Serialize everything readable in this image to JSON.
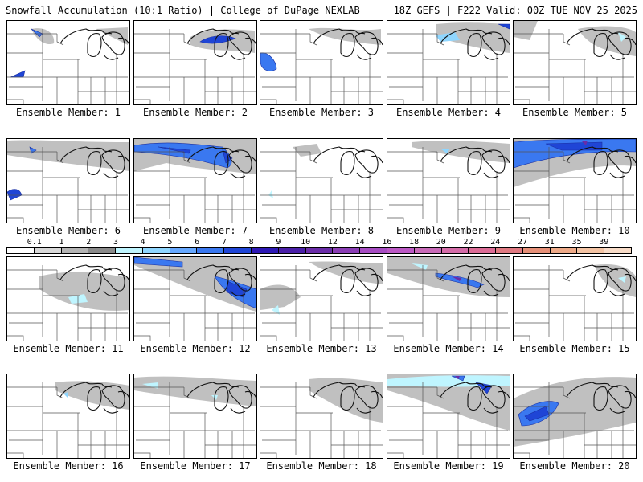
{
  "header": {
    "title": "Snowfall Accumulation (10:1 Ratio) | College of DuPage NEXLAB",
    "run_info": "18Z GEFS | F222 Valid: 00Z TUE NOV 25 2025"
  },
  "legend": {
    "labels": [
      "0.1",
      "1",
      "2",
      "3",
      "4",
      "5",
      "6",
      "7",
      "8",
      "9",
      "10",
      "12",
      "14",
      "16",
      "18",
      "20",
      "22",
      "24",
      "27",
      "31",
      "35",
      "39"
    ],
    "colors": [
      "#ffffff",
      "#d8d8d8",
      "#b4b4b4",
      "#8a8a8a",
      "#bff5ff",
      "#8fd6ff",
      "#66a8ff",
      "#3a78f0",
      "#1f45d6",
      "#2d18b5",
      "#4a1fa8",
      "#6a2ca8",
      "#8a3db5",
      "#a64cc2",
      "#bb58c4",
      "#c86ab8",
      "#d46ca8",
      "#dc6c96",
      "#e07a82",
      "#e69078",
      "#eeaa88",
      "#f4c4a4",
      "#f8dcc8"
    ]
  },
  "panels": [
    {
      "label": "Ensemble Member: 1"
    },
    {
      "label": "Ensemble Member: 2"
    },
    {
      "label": "Ensemble Member: 3"
    },
    {
      "label": "Ensemble Member: 4"
    },
    {
      "label": "Ensemble Member: 5"
    },
    {
      "label": "Ensemble Member: 6"
    },
    {
      "label": "Ensemble Member: 7"
    },
    {
      "label": "Ensemble Member: 8"
    },
    {
      "label": "Ensemble Member: 9"
    },
    {
      "label": "Ensemble Member: 10"
    },
    {
      "label": "Ensemble Member: 11"
    },
    {
      "label": "Ensemble Member: 12"
    },
    {
      "label": "Ensemble Member: 13"
    },
    {
      "label": "Ensemble Member: 14"
    },
    {
      "label": "Ensemble Member: 15"
    },
    {
      "label": "Ensemble Member: 16"
    },
    {
      "label": "Ensemble Member: 17"
    },
    {
      "label": "Ensemble Member: 18"
    },
    {
      "label": "Ensemble Member: 19"
    },
    {
      "label": "Ensemble Member: 20"
    }
  ]
}
